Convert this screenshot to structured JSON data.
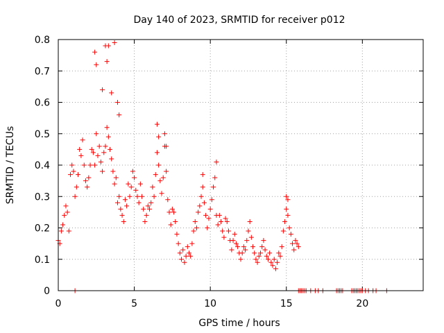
{
  "chart_data": {
    "type": "scatter",
    "title": "Day 140 of 2023, SRMTID for receiver p012",
    "xlabel": "GPS time / hours",
    "ylabel": "SRMTID / TECUs",
    "xlim": [
      0,
      24
    ],
    "ylim": [
      0,
      0.8
    ],
    "xticks": [
      0,
      5,
      10,
      15,
      20
    ],
    "yticks": [
      0,
      0.1,
      0.2,
      0.3,
      0.4,
      0.5,
      0.6,
      0.7,
      0.8
    ],
    "xtick_labels": [
      "0",
      "5",
      "10",
      "15",
      "20"
    ],
    "ytick_labels": [
      "0",
      "0.1",
      "0.2",
      "0.3",
      "0.4",
      "0.5",
      "0.6",
      "0.7",
      "0.8"
    ],
    "grid": true,
    "marker": "+",
    "color": "#ff0000",
    "series": [
      {
        "name": "SRMTID",
        "x": [
          0.0,
          0.1,
          0.2,
          0.3,
          0.4,
          0.5,
          0.6,
          0.7,
          0.8,
          0.9,
          1.0,
          1.1,
          1.2,
          1.3,
          1.4,
          1.5,
          1.6,
          1.7,
          1.8,
          1.9,
          2.0,
          2.1,
          2.2,
          2.3,
          2.4,
          2.5,
          2.6,
          2.7,
          2.8,
          2.9,
          3.0,
          3.1,
          3.2,
          3.3,
          3.4,
          3.5,
          3.6,
          3.7,
          3.8,
          3.9,
          4.0,
          4.1,
          4.2,
          4.3,
          4.4,
          4.5,
          4.6,
          4.7,
          4.8,
          4.9,
          5.0,
          5.1,
          5.2,
          5.3,
          5.4,
          5.5,
          5.6,
          5.7,
          5.8,
          5.9,
          6.0,
          6.1,
          6.2,
          6.3,
          6.4,
          6.5,
          6.6,
          6.7,
          6.8,
          6.9,
          7.0,
          7.1,
          7.2,
          7.3,
          7.4,
          7.5,
          7.6,
          7.7,
          7.8,
          7.9,
          8.0,
          8.1,
          8.2,
          8.3,
          8.4,
          8.5,
          8.6,
          8.7,
          8.8,
          8.9,
          9.0,
          9.1,
          9.2,
          9.3,
          9.4,
          9.5,
          9.6,
          9.7,
          9.8,
          9.9,
          10.0,
          10.1,
          10.2,
          10.3,
          10.4,
          10.5,
          10.6,
          10.7,
          10.8,
          10.9,
          11.0,
          11.1,
          11.2,
          11.3,
          11.4,
          11.5,
          11.6,
          11.7,
          11.8,
          11.9,
          12.0,
          12.1,
          12.2,
          12.3,
          12.4,
          12.5,
          12.6,
          12.7,
          12.8,
          12.9,
          13.0,
          13.1,
          13.2,
          13.3,
          13.4,
          13.5,
          13.6,
          13.7,
          13.8,
          13.9,
          14.0,
          14.1,
          14.2,
          14.3,
          14.4,
          14.5,
          14.6,
          14.7,
          14.8,
          14.9,
          15.0,
          15.1,
          15.2,
          15.3,
          15.4,
          15.5,
          15.6,
          15.7,
          15.8,
          1.1,
          2.4,
          2.5,
          2.9,
          3.1,
          3.2,
          3.3,
          3.5,
          3.7,
          3.9,
          4.0,
          6.5,
          6.6,
          7.0,
          7.1,
          9.5,
          10.4,
          15.0,
          15.1,
          15.8,
          15.9,
          16.0,
          16.1,
          16.2,
          16.3,
          16.6,
          16.9,
          17.1,
          17.4,
          18.3,
          18.4,
          18.5,
          18.6,
          18.7,
          19.3,
          19.4,
          19.5,
          19.6,
          19.7,
          19.8,
          19.9,
          20.0,
          20.2,
          20.4,
          20.7,
          20.9,
          21.6
        ],
        "y": [
          0.16,
          0.15,
          0.19,
          0.21,
          0.24,
          0.27,
          0.25,
          0.19,
          0.37,
          0.4,
          0.38,
          0.3,
          0.33,
          0.37,
          0.45,
          0.43,
          0.48,
          0.4,
          0.35,
          0.33,
          0.36,
          0.4,
          0.45,
          0.44,
          0.4,
          0.5,
          0.43,
          0.46,
          0.41,
          0.38,
          0.44,
          0.46,
          0.52,
          0.49,
          0.45,
          0.42,
          0.38,
          0.34,
          0.36,
          0.28,
          0.3,
          0.26,
          0.24,
          0.22,
          0.29,
          0.27,
          0.34,
          0.3,
          0.33,
          0.38,
          0.36,
          0.32,
          0.3,
          0.28,
          0.34,
          0.3,
          0.26,
          0.22,
          0.24,
          0.27,
          0.26,
          0.28,
          0.33,
          0.3,
          0.37,
          0.44,
          0.4,
          0.35,
          0.31,
          0.36,
          0.46,
          0.38,
          0.29,
          0.25,
          0.21,
          0.26,
          0.25,
          0.22,
          0.18,
          0.15,
          0.12,
          0.1,
          0.13,
          0.09,
          0.11,
          0.14,
          0.12,
          0.11,
          0.15,
          0.19,
          0.22,
          0.2,
          0.25,
          0.27,
          0.3,
          0.33,
          0.28,
          0.24,
          0.2,
          0.23,
          0.26,
          0.29,
          0.33,
          0.36,
          0.24,
          0.21,
          0.24,
          0.22,
          0.19,
          0.17,
          0.23,
          0.22,
          0.19,
          0.16,
          0.13,
          0.16,
          0.18,
          0.15,
          0.14,
          0.12,
          0.1,
          0.12,
          0.14,
          0.13,
          0.16,
          0.19,
          0.22,
          0.17,
          0.14,
          0.12,
          0.1,
          0.09,
          0.11,
          0.12,
          0.14,
          0.16,
          0.13,
          0.11,
          0.1,
          0.12,
          0.09,
          0.08,
          0.1,
          0.07,
          0.09,
          0.12,
          0.11,
          0.14,
          0.19,
          0.22,
          0.26,
          0.24,
          0.2,
          0.18,
          0.15,
          0.13,
          0.16,
          0.15,
          0.14,
          0.0,
          0.76,
          0.72,
          0.64,
          0.78,
          0.73,
          0.78,
          0.63,
          0.79,
          0.6,
          0.56,
          0.53,
          0.49,
          0.5,
          0.46,
          0.37,
          0.41,
          0.3,
          0.29,
          0.0,
          0.0,
          0.0,
          0.0,
          0.0,
          0.0,
          0.0,
          0.0,
          0.0,
          0.0,
          0.0,
          0.0,
          0.0,
          0.0,
          0.0,
          0.0,
          0.0,
          0.0,
          0.0,
          0.0,
          0.0,
          0.0,
          0.0,
          0.0,
          0.0,
          0.0,
          0.0,
          0.0
        ]
      }
    ]
  }
}
